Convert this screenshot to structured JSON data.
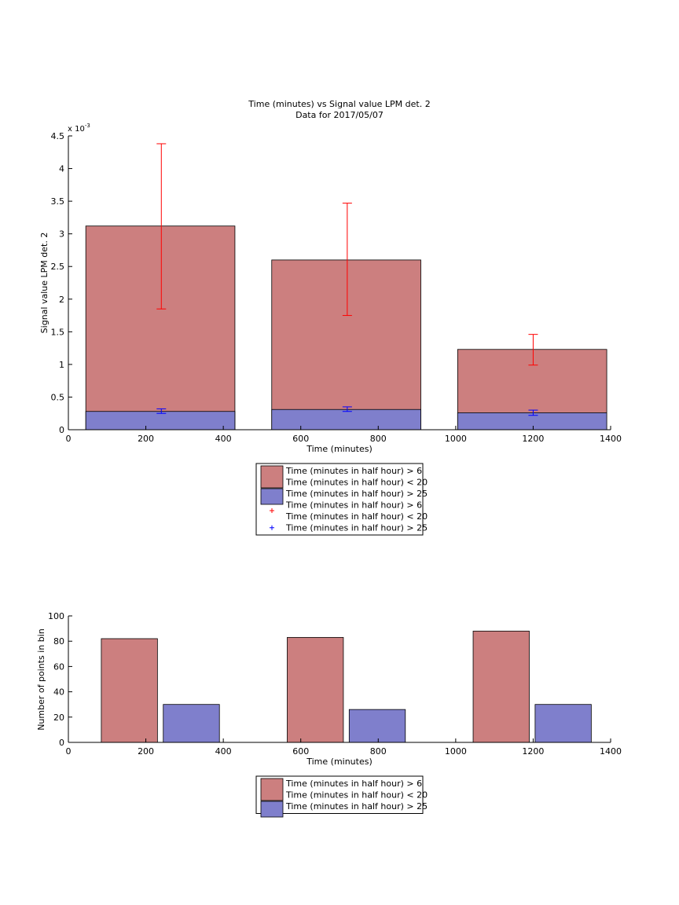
{
  "chart_data": [
    {
      "type": "bar",
      "title": "Time (minutes) vs Signal value LPM det. 2",
      "subtitle": "Data for 2017/05/07",
      "xlabel": "Time (minutes)",
      "ylabel": "Signal value LPM det. 2",
      "y_exponent_label": "x 10",
      "y_exponent_power": "-3",
      "xlim": [
        0,
        1400
      ],
      "ylim": [
        0,
        4.5
      ],
      "y_scale_factor": 0.001,
      "xticks": [
        0,
        200,
        400,
        600,
        800,
        1000,
        1200,
        1400
      ],
      "xtick_labels": [
        "0",
        "200",
        "400",
        "600",
        "800",
        "1000",
        "1200",
        "1400"
      ],
      "yticks": [
        0,
        0.5,
        1,
        1.5,
        2,
        2.5,
        3,
        3.5,
        4,
        4.5
      ],
      "ytick_labels": [
        "0",
        "0.5",
        "1",
        "1.5",
        "2",
        "2.5",
        "3",
        "3.5",
        "4",
        "4.5"
      ],
      "grid": false,
      "legend_position": "below",
      "bar_ranges": [
        [
          45,
          430
        ],
        [
          525,
          910
        ],
        [
          1005,
          1390
        ]
      ],
      "series": [
        {
          "name": "Time (minutes in half hour) > 6 Time (minutes in half hour) < 20",
          "color": "#cc7f7f",
          "values": [
            3.12,
            2.6,
            1.23
          ],
          "error_color": "#ff0000",
          "error_x": [
            240,
            720,
            1200
          ],
          "error_low": [
            1.85,
            1.75,
            0.99
          ],
          "error_high": [
            4.38,
            3.47,
            1.46
          ]
        },
        {
          "name": "Time (minutes in half hour) > 25",
          "color": "#7f7fcc",
          "values": [
            0.28,
            0.31,
            0.26
          ],
          "error_color": "#0000ff",
          "error_x": [
            240,
            720,
            1200
          ],
          "error_low": [
            0.25,
            0.28,
            0.22
          ],
          "error_high": [
            0.32,
            0.35,
            0.3
          ]
        }
      ],
      "legend": [
        {
          "kind": "patch",
          "color": "#cc7f7f",
          "lines": [
            "Time (minutes in half hour) > 6",
            "Time (minutes in half hour) < 20"
          ]
        },
        {
          "kind": "patch",
          "color": "#7f7fcc",
          "lines": [
            "Time (minutes in half hour) > 25"
          ]
        },
        {
          "kind": "marker",
          "color": "#ff0000",
          "lines": [
            "Time (minutes in half hour) > 6",
            "Time (minutes in half hour) < 20"
          ]
        },
        {
          "kind": "marker",
          "color": "#0000ff",
          "lines": [
            "Time (minutes in half hour) > 25"
          ]
        }
      ]
    },
    {
      "type": "bar",
      "xlabel": "Time (minutes)",
      "ylabel": "Number of points in bin",
      "xlim": [
        0,
        1400
      ],
      "ylim": [
        0,
        100
      ],
      "xticks": [
        0,
        200,
        400,
        600,
        800,
        1000,
        1200,
        1400
      ],
      "xtick_labels": [
        "0",
        "200",
        "400",
        "600",
        "800",
        "1000",
        "1200",
        "1400"
      ],
      "yticks": [
        0,
        20,
        40,
        60,
        80,
        100
      ],
      "ytick_labels": [
        "0",
        "20",
        "40",
        "60",
        "80",
        "100"
      ],
      "grid": false,
      "legend_position": "below",
      "series": [
        {
          "name": "Time (minutes in half hour) > 6 Time (minutes in half hour) < 20",
          "color": "#cc7f7f",
          "bar_ranges": [
            [
              85,
              230
            ],
            [
              565,
              710
            ],
            [
              1045,
              1190
            ]
          ],
          "values": [
            82,
            83,
            88
          ]
        },
        {
          "name": "Time (minutes in half hour) > 25",
          "color": "#7f7fcc",
          "bar_ranges": [
            [
              245,
              390
            ],
            [
              725,
              870
            ],
            [
              1205,
              1350
            ]
          ],
          "values": [
            30,
            26,
            30
          ]
        }
      ],
      "legend": [
        {
          "kind": "patch",
          "color": "#cc7f7f",
          "lines": [
            "Time (minutes in half hour) > 6",
            "Time (minutes in half hour) < 20"
          ]
        },
        {
          "kind": "patch",
          "color": "#7f7fcc",
          "lines": [
            "Time (minutes in half hour) > 25"
          ]
        }
      ]
    }
  ]
}
